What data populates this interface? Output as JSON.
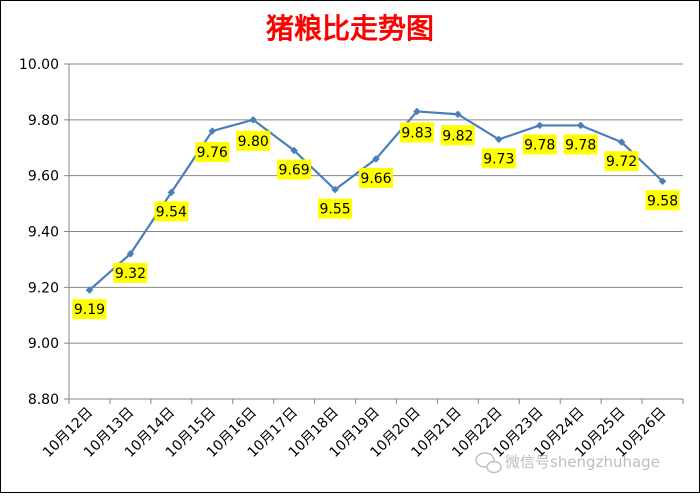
{
  "chart_data": {
    "type": "line",
    "title": "猪粮比走势图",
    "xlabel": "",
    "ylabel": "",
    "categories": [
      "10月12日",
      "10月13日",
      "10月14日",
      "10月15日",
      "10月16日",
      "10月17日",
      "10月18日",
      "10月19日",
      "10月20日",
      "10月21日",
      "10月22日",
      "10月23日",
      "10月24日",
      "10月25日",
      "10月26日"
    ],
    "series": [
      {
        "values": [
          9.19,
          9.32,
          9.54,
          9.76,
          9.8,
          9.69,
          9.55,
          9.66,
          9.83,
          9.82,
          9.73,
          9.78,
          9.78,
          9.72,
          9.58
        ],
        "labels": [
          "9.19",
          "9.32",
          "9.54",
          "9.76",
          "9.80",
          "9.69",
          "9.55",
          "9.66",
          "9.83",
          "9.82",
          "9.73",
          "9.78",
          "9.78",
          "9.72",
          "9.58"
        ]
      }
    ],
    "ylim": [
      8.8,
      10.0
    ],
    "yticks": [
      "8.80",
      "9.00",
      "9.20",
      "9.40",
      "9.60",
      "9.80",
      "10.00"
    ],
    "grid": "horizontal",
    "legend": "none",
    "colors": {
      "title": "#ff0000",
      "line": "#4a7ebb",
      "label_bg": "#ffff00",
      "grid": "#868686",
      "frame": "#000000"
    }
  },
  "watermark": {
    "text": "微信号shengzhuhage",
    "icon": "wechat-icon"
  }
}
